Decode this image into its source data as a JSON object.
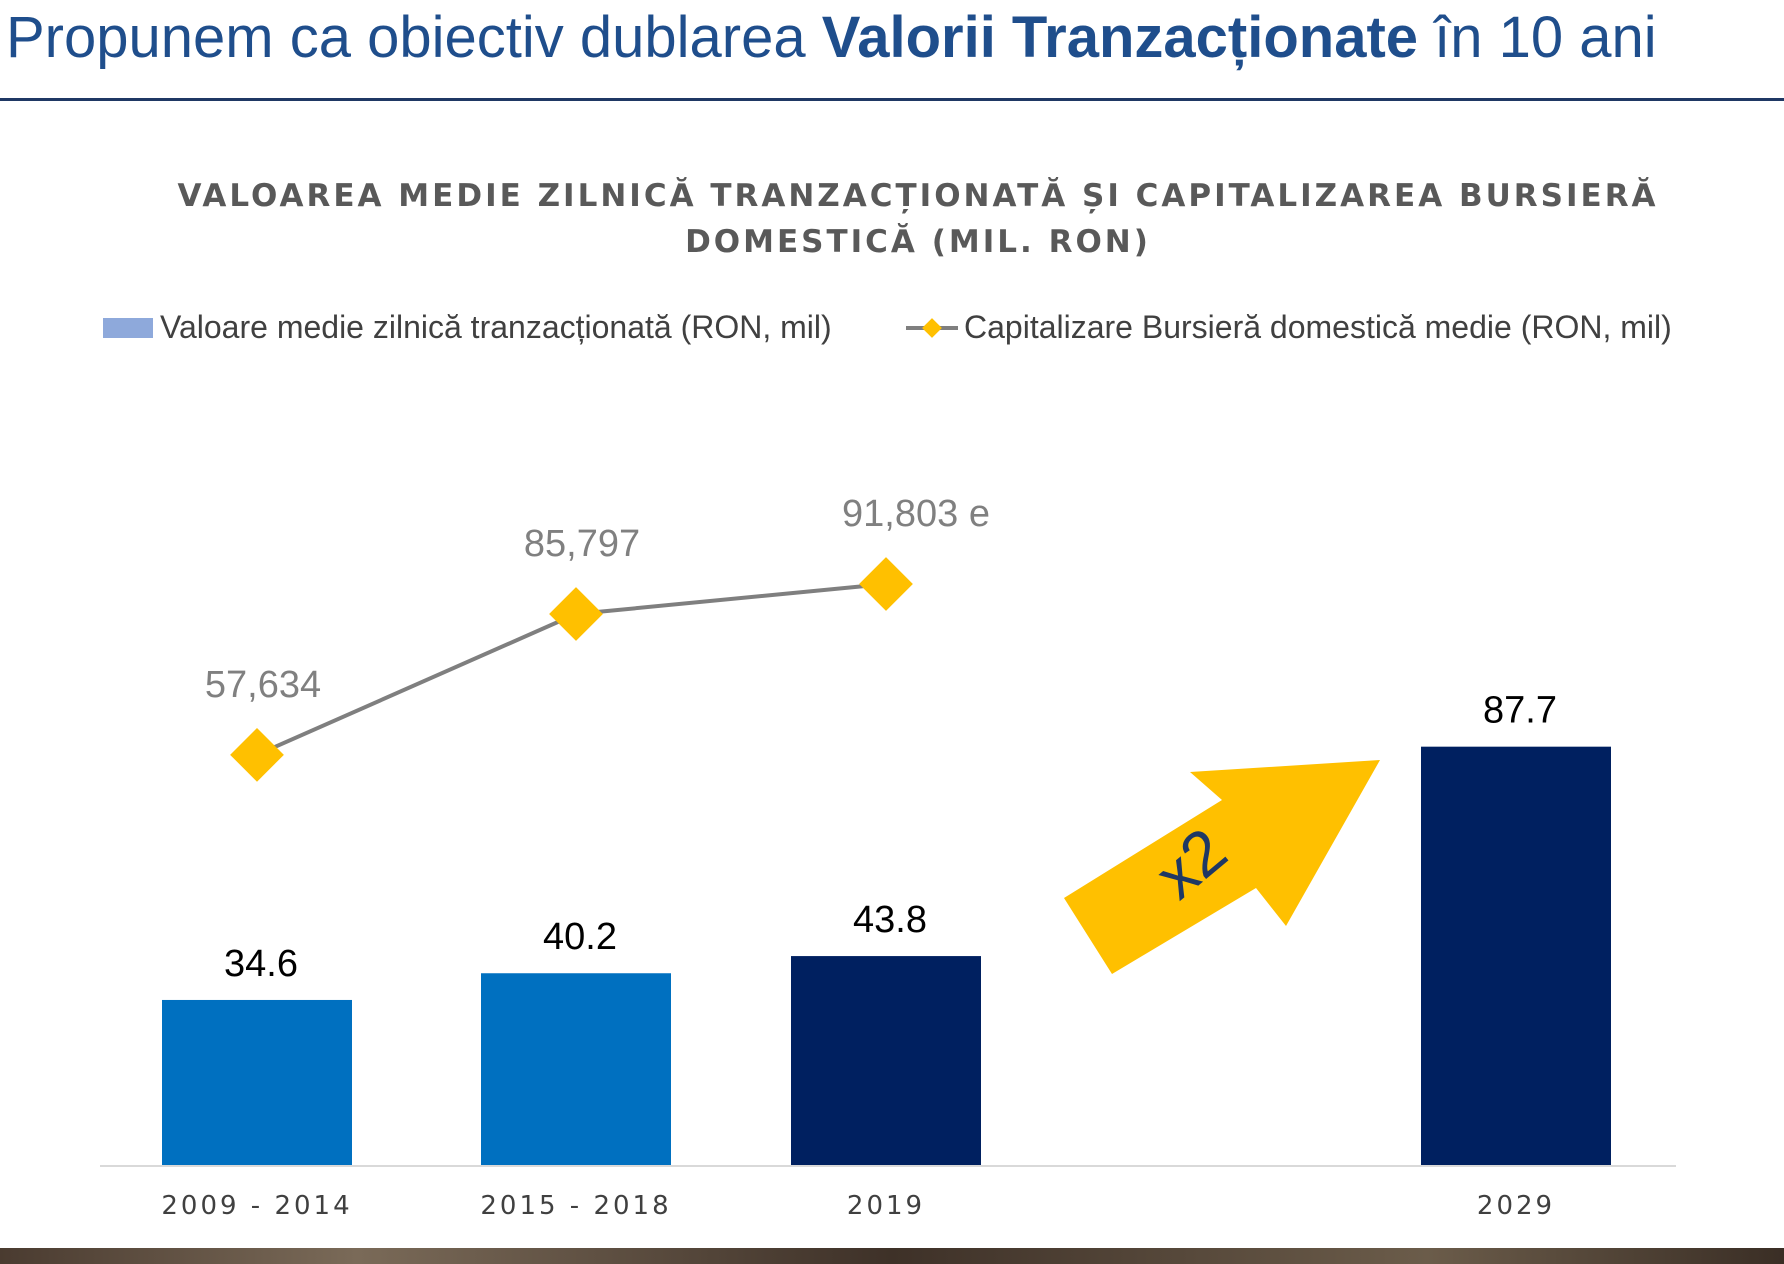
{
  "slide": {
    "title_pre": "Propunem ca obiectiv dublarea ",
    "title_bold": "Valorii Tranzacționate",
    "title_post": " în 10 ani"
  },
  "arrow_label": "x2",
  "colors": {
    "title": "#1f4e8c",
    "bar_blue": "#0070c0",
    "bar_navy": "#002060",
    "marker": "#ffc000",
    "line": "#7f7f7f",
    "legend_bar": "#8ea9db"
  },
  "chart_data": {
    "type": "bar",
    "title_lines": [
      "VALOAREA MEDIE ZILNICĂ TRANZACȚIONATĂ ȘI CAPITALIZAREA BURSIERĂ",
      "DOMESTICĂ (MIL. RON)"
    ],
    "categories": [
      "2009   - 2014",
      "2015 - 2018",
      "2019",
      "",
      "2029"
    ],
    "legend": {
      "bar": "Valoare medie zilnică tranzacționată (RON, mil)",
      "line": "Capitalizare Bursieră domestică medie (RON, mil)"
    },
    "series": [
      {
        "name": "Valoare medie zilnică tranzacționată (RON, mil)",
        "type": "bar",
        "values": [
          34.6,
          40.2,
          43.8,
          null,
          87.7
        ],
        "labels": [
          "34.6",
          "40.2",
          "43.8",
          "",
          "87.7"
        ],
        "colors": [
          "#0070c0",
          "#0070c0",
          "#002060",
          "",
          "#002060"
        ]
      },
      {
        "name": "Capitalizare Bursieră domestică medie (RON, mil)",
        "type": "line",
        "values": [
          57634,
          85797,
          91803,
          null,
          null
        ],
        "labels": [
          "57,634",
          "85,797",
          "91,803 e",
          "",
          ""
        ]
      }
    ],
    "y_bar_range": [
      0,
      100
    ],
    "y_line_range": [
      0,
      130000
    ],
    "grid": false,
    "legend_position": "top"
  }
}
